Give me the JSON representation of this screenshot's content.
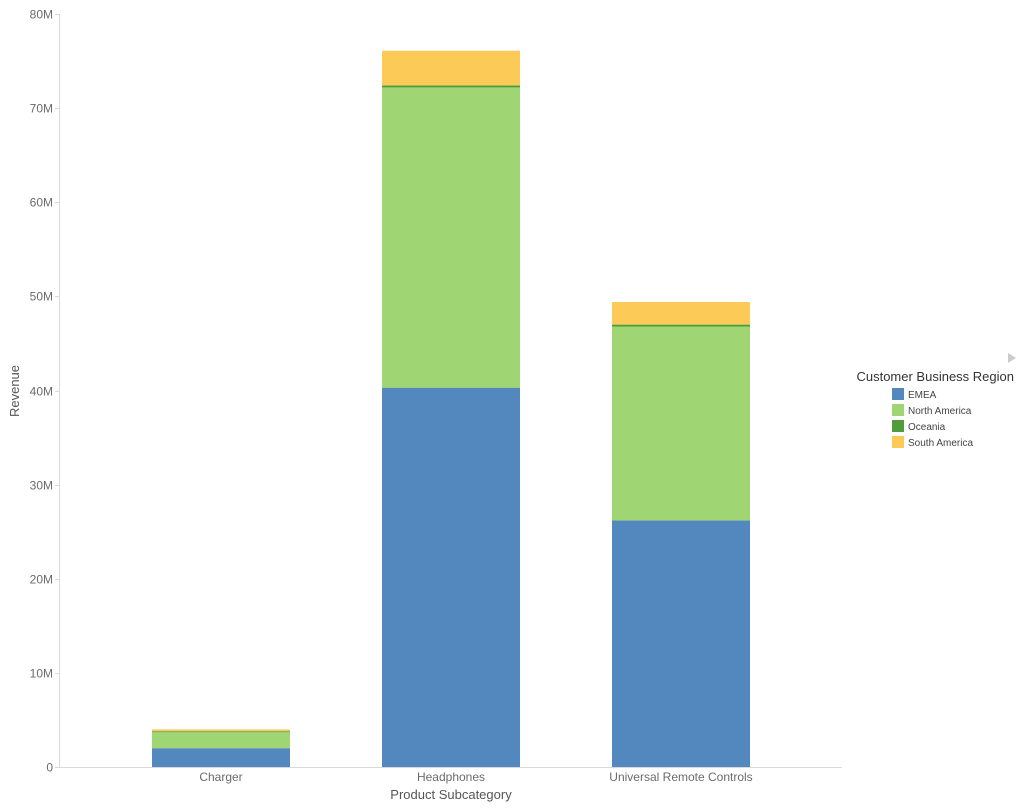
{
  "chart_data": {
    "type": "bar",
    "stacked": true,
    "title": "",
    "xlabel": "Product Subcategory",
    "ylabel": "Revenue",
    "ylim": [
      0,
      80000000
    ],
    "y_ticks": [
      "0",
      "10M",
      "20M",
      "30M",
      "40M",
      "50M",
      "60M",
      "70M",
      "80M"
    ],
    "y_tick_values": [
      0,
      10000000,
      20000000,
      30000000,
      40000000,
      50000000,
      60000000,
      70000000,
      80000000
    ],
    "grid": false,
    "categories": [
      "Charger",
      "Headphones",
      "Universal Remote Controls"
    ],
    "series": [
      {
        "name": "EMEA",
        "color": "#5388be",
        "values": [
          2000000,
          40300000,
          26200000
        ]
      },
      {
        "name": "North America",
        "color": "#9fd572",
        "values": [
          1700000,
          31900000,
          20600000
        ]
      },
      {
        "name": "Oceania",
        "color": "#4e9c3c",
        "values": [
          100000,
          200000,
          200000
        ]
      },
      {
        "name": "South America",
        "color": "#fcca56",
        "values": [
          200000,
          3700000,
          2400000
        ]
      }
    ],
    "legend": {
      "title": "Customer Business Region",
      "position": "right"
    }
  },
  "legend_scroll_icon": "triangle-right-icon"
}
